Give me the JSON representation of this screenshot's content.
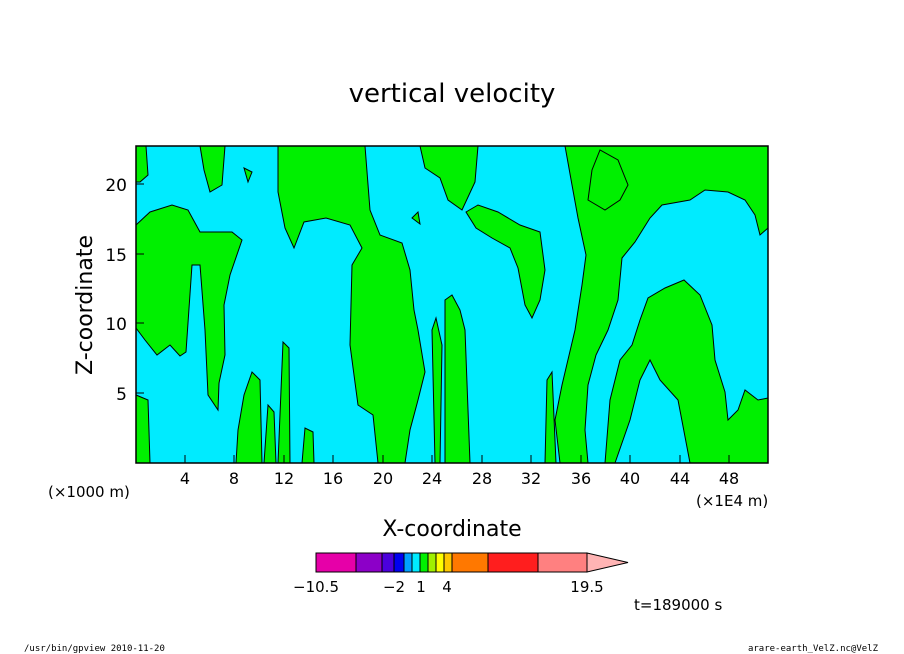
{
  "chart_data": {
    "type": "heatmap",
    "title": "vertical velocity",
    "xlabel": "X-coordinate",
    "ylabel": "Z-coordinate",
    "x_unit_left": "(×1000 m)",
    "x_unit_right": "(×1E4 m)",
    "x_ticks": [
      "4",
      "8",
      "12",
      "16",
      "20",
      "24",
      "28",
      "32",
      "36",
      "40",
      "44",
      "48"
    ],
    "y_ticks": [
      "5",
      "10",
      "15",
      "20"
    ],
    "xlim": [
      0,
      51
    ],
    "ylim": [
      0,
      22.8
    ],
    "field_colors": {
      "negative": "#00ebff",
      "positive": "#00f000"
    },
    "colorbar": {
      "colors": [
        "#e600a8",
        "#8c00c8",
        "#4b00dc",
        "#0000f0",
        "#00a0ff",
        "#00ebff",
        "#00f000",
        "#a0f000",
        "#ffff00",
        "#ffc800",
        "#ff7800",
        "#ff1e1e",
        "#ff8080"
      ],
      "arrow_color": "#ffb4b4",
      "labels": [
        "−10.5",
        "−2",
        "1",
        "4",
        "19.5"
      ]
    },
    "time_label": "t=189000 s",
    "footer_left": "/usr/bin/gpview 2010-11-20",
    "footer_right": "arare-earth_VelZ.nc@VelZ"
  }
}
